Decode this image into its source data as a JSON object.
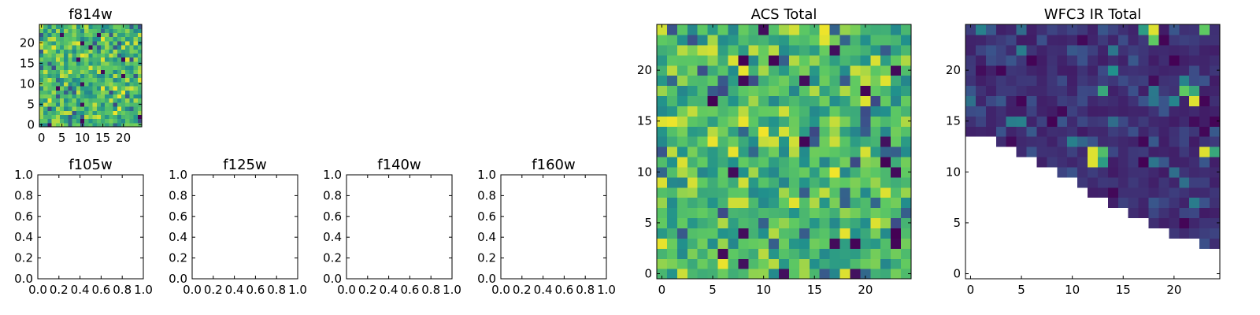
{
  "figure": {
    "colormap": "viridis",
    "colors": {
      "text": "#000000",
      "frame": "#000000",
      "background": "#ffffff",
      "viridis_stops": [
        "#440154",
        "#3b528b",
        "#21918c",
        "#5ec962",
        "#fde725"
      ]
    }
  },
  "chart_data": [
    {
      "id": "f814w",
      "type": "heatmap",
      "title": "f814w",
      "xlabel": "",
      "ylabel": "",
      "nx": 25,
      "ny": 25,
      "xlim": [
        -0.5,
        24.5
      ],
      "ylim": [
        -0.5,
        24.5
      ],
      "xticks": [
        0,
        5,
        10,
        15,
        20
      ],
      "xticklabels": [
        "0",
        "5",
        "10",
        "15",
        "20"
      ],
      "yticks": [
        0,
        5,
        10,
        15,
        20
      ],
      "yticklabels": [
        "0",
        "5",
        "10",
        "15",
        "20"
      ],
      "value_range": [
        0,
        1
      ],
      "mask": "none",
      "pattern": "random noise, mostly green-yellow (~0.55-0.8) with scattered dark cells",
      "seed": 814
    },
    {
      "id": "f105w",
      "type": "empty",
      "title": "f105w",
      "xlim": [
        0,
        1
      ],
      "ylim": [
        0,
        1
      ],
      "xticklabels": [
        "0.0",
        "0.2",
        "0.4",
        "0.6",
        "0.8",
        "1.0"
      ],
      "yticklabels": [
        "0.0",
        "0.2",
        "0.4",
        "0.6",
        "0.8",
        "1.0"
      ]
    },
    {
      "id": "f125w",
      "type": "empty",
      "title": "f125w",
      "xlim": [
        0,
        1
      ],
      "ylim": [
        0,
        1
      ],
      "xticklabels": [
        "0.0",
        "0.2",
        "0.4",
        "0.6",
        "0.8",
        "1.0"
      ],
      "yticklabels": [
        "0.0",
        "0.2",
        "0.4",
        "0.6",
        "0.8",
        "1.0"
      ]
    },
    {
      "id": "f140w",
      "type": "empty",
      "title": "f140w",
      "xlim": [
        0,
        1
      ],
      "ylim": [
        0,
        1
      ],
      "xticklabels": [
        "0.0",
        "0.2",
        "0.4",
        "0.6",
        "0.8",
        "1.0"
      ],
      "yticklabels": [
        "0.0",
        "0.2",
        "0.4",
        "0.6",
        "0.8",
        "1.0"
      ]
    },
    {
      "id": "f160w",
      "type": "empty",
      "title": "f160w",
      "xlim": [
        0,
        1
      ],
      "ylim": [
        0,
        1
      ],
      "xticklabels": [
        "0.0",
        "0.2",
        "0.4",
        "0.6",
        "0.8",
        "1.0"
      ],
      "yticklabels": [
        "0.0",
        "0.2",
        "0.4",
        "0.6",
        "0.8",
        "1.0"
      ]
    },
    {
      "id": "acs-total",
      "type": "heatmap",
      "title": "ACS Total",
      "xlabel": "",
      "ylabel": "",
      "nx": 25,
      "ny": 25,
      "xlim": [
        -0.5,
        24.5
      ],
      "ylim": [
        -0.5,
        24.5
      ],
      "xticks": [
        0,
        5,
        10,
        15,
        20
      ],
      "xticklabels": [
        "0",
        "5",
        "10",
        "15",
        "20"
      ],
      "yticks": [
        0,
        5,
        10,
        15,
        20
      ],
      "yticklabels": [
        "0",
        "5",
        "10",
        "15",
        "20"
      ],
      "value_range": [
        0,
        1
      ],
      "mask": "none",
      "pattern": "random noise, mostly green-yellow (~0.55-0.8) with scattered dark cells",
      "seed": 2
    },
    {
      "id": "wfc3-ir-total",
      "type": "heatmap",
      "title": "WFC3 IR Total",
      "xlabel": "",
      "ylabel": "",
      "nx": 25,
      "ny": 25,
      "xlim": [
        -0.5,
        24.5
      ],
      "ylim": [
        -0.5,
        24.5
      ],
      "xticks": [
        0,
        5,
        10,
        15,
        20
      ],
      "xticklabels": [
        "0",
        "5",
        "10",
        "15",
        "20"
      ],
      "yticks": [
        0,
        5,
        10,
        15,
        20
      ],
      "yticklabels": [
        "0",
        "5",
        "10",
        "15",
        "20"
      ],
      "value_range": [
        0,
        1
      ],
      "mask": "lower-left triangle is empty (no data) below the stepped diagonal",
      "mask_boundary": [
        {
          "col_from": 0,
          "col_to": 2,
          "min_row": 14
        },
        {
          "col_from": 3,
          "col_to": 4,
          "min_row": 13
        },
        {
          "col_from": 5,
          "col_to": 6,
          "min_row": 12
        },
        {
          "col_from": 7,
          "col_to": 8,
          "min_row": 11
        },
        {
          "col_from": 9,
          "col_to": 10,
          "min_row": 10
        },
        {
          "col_from": 11,
          "col_to": 11,
          "min_row": 9
        },
        {
          "col_from": 12,
          "col_to": 13,
          "min_row": 8
        },
        {
          "col_from": 14,
          "col_to": 15,
          "min_row": 7
        },
        {
          "col_from": 16,
          "col_to": 17,
          "min_row": 6
        },
        {
          "col_from": 18,
          "col_to": 19,
          "min_row": 5
        },
        {
          "col_from": 20,
          "col_to": 22,
          "min_row": 4
        },
        {
          "col_from": 23,
          "col_to": 24,
          "min_row": 3
        }
      ],
      "pattern": "mostly dark purple (~0.05-0.25) with a few bright green/yellow hot pixels",
      "bright_cells": [
        {
          "x": 18,
          "y": 24,
          "v": 0.95
        },
        {
          "x": 18,
          "y": 23,
          "v": 0.75
        },
        {
          "x": 17,
          "y": 24,
          "v": 0.55
        },
        {
          "x": 23,
          "y": 24,
          "v": 0.75
        },
        {
          "x": 14,
          "y": 20,
          "v": 0.5
        },
        {
          "x": 13,
          "y": 18,
          "v": 0.6
        },
        {
          "x": 22,
          "y": 18,
          "v": 0.6
        },
        {
          "x": 22,
          "y": 17,
          "v": 0.95
        },
        {
          "x": 21,
          "y": 18,
          "v": 0.75
        },
        {
          "x": 12,
          "y": 12,
          "v": 0.95
        },
        {
          "x": 12,
          "y": 11,
          "v": 0.95
        },
        {
          "x": 13,
          "y": 12,
          "v": 0.7
        },
        {
          "x": 13,
          "y": 11,
          "v": 0.55
        },
        {
          "x": 23,
          "y": 12,
          "v": 0.95
        },
        {
          "x": 24,
          "y": 12,
          "v": 0.6
        }
      ],
      "seed": 3
    }
  ]
}
